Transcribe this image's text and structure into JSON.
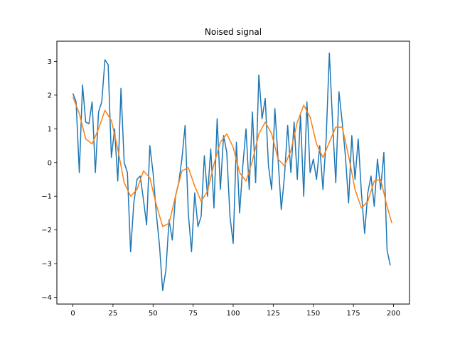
{
  "chart_data": {
    "type": "line",
    "title": "Noised signal",
    "xlabel": "",
    "ylabel": "",
    "xlim": [
      -10,
      210
    ],
    "ylim": [
      -4.2,
      3.6
    ],
    "grid": false,
    "legend": "none",
    "x_ticks": [
      0,
      25,
      50,
      75,
      100,
      125,
      150,
      175,
      200
    ],
    "y_ticks": [
      -4,
      -3,
      -2,
      -1,
      0,
      1,
      2,
      3
    ],
    "series": [
      {
        "color": "#1f77b4",
        "x": [
          0,
          2,
          4,
          6,
          8,
          10,
          12,
          14,
          16,
          18,
          20,
          22,
          24,
          26,
          28,
          30,
          32,
          34,
          36,
          38,
          40,
          42,
          44,
          46,
          48,
          50,
          52,
          54,
          56,
          58,
          60,
          62,
          64,
          66,
          68,
          70,
          72,
          74,
          76,
          78,
          80,
          82,
          84,
          86,
          88,
          90,
          92,
          94,
          96,
          98,
          100,
          102,
          104,
          106,
          108,
          110,
          112,
          114,
          116,
          118,
          120,
          122,
          124,
          126,
          128,
          130,
          132,
          134,
          136,
          138,
          140,
          142,
          144,
          146,
          148,
          150,
          152,
          154,
          156,
          158,
          160,
          162,
          164,
          166,
          168,
          170,
          172,
          174,
          176,
          178,
          180,
          182,
          184,
          186,
          188,
          190,
          192,
          194,
          196,
          198
        ],
        "values": [
          2.05,
          1.8,
          -0.3,
          2.3,
          1.2,
          1.15,
          1.8,
          -0.3,
          1.5,
          1.8,
          3.05,
          2.9,
          0.15,
          1.0,
          -0.55,
          2.2,
          0.0,
          -0.3,
          -2.65,
          -1.2,
          -0.5,
          -0.4,
          -1.1,
          -1.85,
          0.5,
          -0.3,
          -1.5,
          -2.45,
          -3.8,
          -3.2,
          -1.7,
          -2.3,
          -1.0,
          -0.6,
          0.1,
          1.1,
          -1.5,
          -2.65,
          -0.9,
          -1.9,
          -1.6,
          0.2,
          -1.0,
          0.4,
          -1.35,
          1.3,
          -0.8,
          0.8,
          0.3,
          -1.6,
          -2.4,
          0.6,
          -1.5,
          -0.1,
          1.0,
          -0.8,
          1.5,
          -0.6,
          2.6,
          1.3,
          1.9,
          -0.1,
          -0.8,
          1.6,
          0.1,
          -1.4,
          -0.4,
          1.1,
          -0.3,
          1.2,
          -0.5,
          1.4,
          -1.0,
          1.8,
          -0.3,
          0.1,
          -0.5,
          0.5,
          -0.8,
          0.7,
          3.25,
          1.2,
          -0.6,
          2.1,
          1.2,
          0.2,
          -1.2,
          0.8,
          -0.5,
          0.7,
          -0.9,
          -2.1,
          -0.9,
          -0.4,
          -1.3,
          0.1,
          -0.8,
          0.3,
          -2.6,
          -3.05
        ]
      },
      {
        "color": "#ff7f0e",
        "x": [
          0,
          4,
          8,
          12,
          16,
          20,
          24,
          28,
          32,
          36,
          40,
          44,
          48,
          52,
          56,
          60,
          64,
          68,
          72,
          76,
          80,
          84,
          88,
          92,
          96,
          100,
          104,
          108,
          112,
          116,
          120,
          124,
          128,
          132,
          136,
          140,
          144,
          148,
          152,
          156,
          160,
          164,
          168,
          172,
          176,
          180,
          184,
          188,
          192,
          196,
          199
        ],
        "values": [
          1.95,
          1.45,
          0.7,
          0.55,
          1.0,
          1.55,
          1.25,
          0.4,
          -0.6,
          -1.0,
          -0.8,
          -0.25,
          -0.45,
          -1.25,
          -1.9,
          -1.8,
          -1.0,
          -0.25,
          -0.15,
          -0.7,
          -1.15,
          -0.85,
          -0.05,
          0.6,
          0.85,
          0.45,
          -0.3,
          -0.55,
          0.05,
          0.85,
          1.2,
          0.85,
          0.1,
          -0.1,
          0.35,
          1.2,
          1.7,
          1.35,
          0.55,
          0.15,
          0.6,
          1.05,
          1.05,
          0.2,
          -0.8,
          -1.35,
          -1.15,
          -0.55,
          -0.5,
          -1.3,
          -1.8
        ]
      }
    ]
  }
}
